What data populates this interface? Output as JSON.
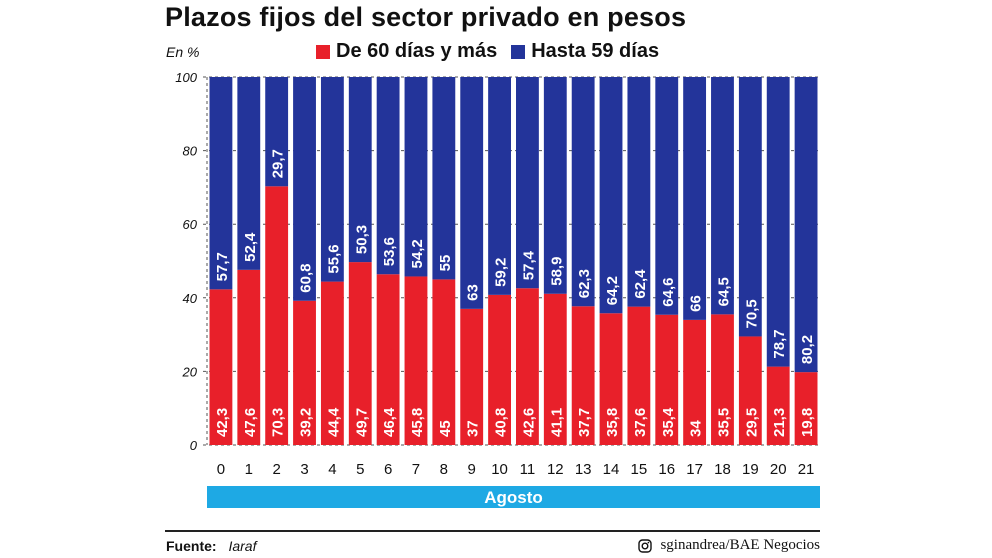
{
  "header": {
    "title": "Plazos fijos del sector privado en pesos",
    "unit": "En %"
  },
  "legend": {
    "items": [
      {
        "label": "De 60 días y más",
        "color": "#e8202a"
      },
      {
        "label": "Hasta 59 días",
        "color": "#23349a"
      }
    ]
  },
  "footer": {
    "source_label": "Fuente:",
    "source_value": "Iaraf",
    "credit": "sginandrea/BAE Negocios",
    "credit_icon": "instagram-icon"
  },
  "chart_data": {
    "type": "bar",
    "stacked": true,
    "categories": [
      "0",
      "1",
      "2",
      "3",
      "4",
      "5",
      "6",
      "7",
      "8",
      "9",
      "10",
      "11",
      "12",
      "13",
      "14",
      "15",
      "16",
      "17",
      "18",
      "19",
      "20",
      "21"
    ],
    "x_group_label": "Agosto",
    "x_group_color": "#1ea9e4",
    "ylim": [
      0,
      100
    ],
    "yticks": [
      0,
      20,
      40,
      60,
      80,
      100
    ],
    "grid": true,
    "series": [
      {
        "name": "De 60 días y más",
        "color": "#e8202a",
        "values": [
          42.3,
          47.6,
          70.3,
          39.2,
          44.4,
          49.7,
          46.4,
          45.8,
          45,
          37,
          40.8,
          42.6,
          41.1,
          37.7,
          35.8,
          37.6,
          35.4,
          34,
          35.5,
          29.5,
          21.3,
          19.8
        ],
        "labels": [
          "42,3",
          "47,6",
          "70,3",
          "39,2",
          "44,4",
          "49,7",
          "46,4",
          "45,8",
          "45",
          "37",
          "40,8",
          "42,6",
          "41,1",
          "37,7",
          "35,8",
          "37,6",
          "35,4",
          "34",
          "35,5",
          "29,5",
          "21,3",
          "19,8"
        ]
      },
      {
        "name": "Hasta 59 días",
        "color": "#23349a",
        "values": [
          57.7,
          52.4,
          29.7,
          60.8,
          55.6,
          50.3,
          53.6,
          54.2,
          55,
          63,
          59.2,
          57.4,
          58.9,
          62.3,
          64.2,
          62.4,
          64.6,
          66,
          64.5,
          70.5,
          78.7,
          80.2
        ],
        "labels": [
          "57,7",
          "52,4",
          "29,7",
          "60,8",
          "55,6",
          "50,3",
          "53,6",
          "54,2",
          "55",
          "63",
          "59,2",
          "57,4",
          "58,9",
          "62,3",
          "64,2",
          "62,4",
          "64,6",
          "66",
          "64,5",
          "70,5",
          "78,7",
          "80,2"
        ]
      }
    ]
  }
}
